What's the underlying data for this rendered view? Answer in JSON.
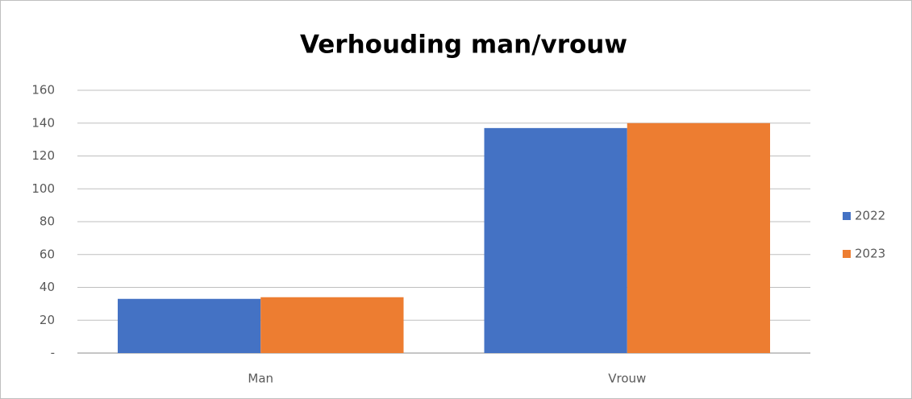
{
  "chart_data": {
    "type": "bar",
    "title": "Verhouding man/vrouw",
    "categories": [
      "Man",
      "Vrouw"
    ],
    "series": [
      {
        "name": "2022",
        "color": "#4472c4",
        "values": [
          33,
          137
        ]
      },
      {
        "name": "2023",
        "color": "#ed7d31",
        "values": [
          34,
          140
        ]
      }
    ],
    "ylim": [
      0,
      160
    ],
    "yticks": [
      {
        "value": 0,
        "label": "-"
      },
      20,
      40,
      60,
      80,
      100,
      120,
      140,
      160
    ],
    "grid": true,
    "legend": "right"
  }
}
